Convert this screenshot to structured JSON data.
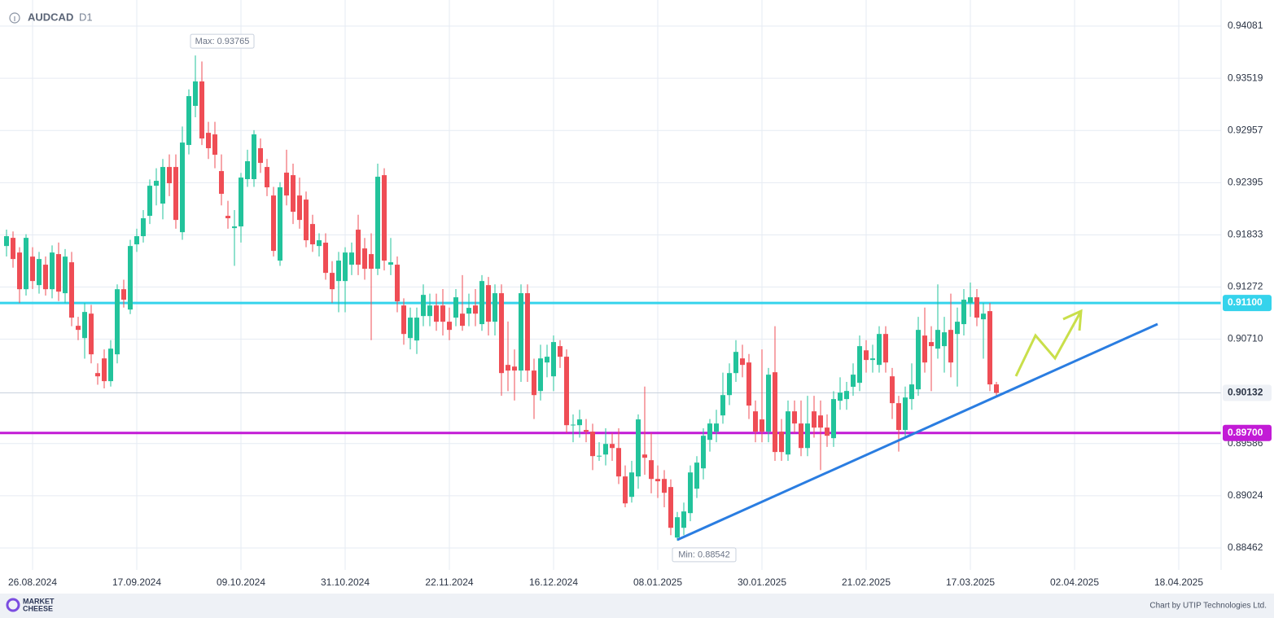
{
  "chart_data": {
    "type": "candlestick",
    "title": "AUDCAD",
    "subtitle": "D1",
    "up_color": "#22c39b",
    "down_color": "#ef4d55",
    "grid": true,
    "ylim": [
      0.88225,
      0.94362
    ],
    "yticks": [
      0.94081,
      0.93519,
      0.92957,
      0.92395,
      0.91833,
      0.91272,
      {
        "value": 0.9071,
        "label": "0.90710"
      },
      0.89586,
      0.89024,
      0.88462
    ],
    "xticks": [
      {
        "value": 4,
        "label": "26.08.2024"
      },
      {
        "value": 20,
        "label": "17.09.2024"
      },
      {
        "value": 36,
        "label": "09.10.2024"
      },
      {
        "value": 52,
        "label": "31.10.2024"
      },
      {
        "value": 68,
        "label": "22.11.2024"
      },
      {
        "value": 84,
        "label": "16.12.2024"
      },
      {
        "value": 100,
        "label": "08.01.2025"
      },
      {
        "value": 116,
        "label": "30.01.2025"
      },
      {
        "value": 132,
        "label": "21.02.2025"
      },
      {
        "value": 148,
        "label": "17.03.2025"
      },
      {
        "value": 164,
        "label": "02.04.2025"
      },
      {
        "value": 180,
        "label": "18.04.2025"
      }
    ],
    "price_lines": [
      {
        "value": 0.911,
        "label": "0.91100",
        "color": "#35d3ec"
      },
      {
        "value": 0.897,
        "label": "0.89700",
        "color": "#c21bd6"
      },
      {
        "value": 0.90132,
        "label": "0.90132",
        "color": "#c9d1dd"
      }
    ],
    "annotations": [
      {
        "label": "Max: 0.93765",
        "index": 29,
        "value": 0.93765
      },
      {
        "label": "Min: 0.88542",
        "index": 103,
        "value": 0.88542
      }
    ],
    "ohlc": [
      [
        0.91713,
        0.9189,
        0.916,
        0.91819
      ],
      [
        0.91801,
        0.9187,
        0.9148,
        0.91573
      ],
      [
        0.91643,
        0.917,
        0.911,
        0.91248
      ],
      [
        0.91248,
        0.9184,
        0.9118,
        0.91801
      ],
      [
        0.91599,
        0.917,
        0.9125,
        0.91336
      ],
      [
        0.91292,
        0.9165,
        0.912,
        0.91573
      ],
      [
        0.91512,
        0.916,
        0.9118,
        0.91248
      ],
      [
        0.91248,
        0.9172,
        0.9115,
        0.91643
      ],
      [
        0.91626,
        0.9175,
        0.9112,
        0.91222
      ],
      [
        0.91205,
        0.9168,
        0.911,
        0.91599
      ],
      [
        0.91538,
        0.9165,
        0.9085,
        0.90942
      ],
      [
        0.90854,
        0.9095,
        0.907,
        0.9081
      ],
      [
        0.90722,
        0.911,
        0.905,
        0.91003
      ],
      [
        0.90985,
        0.9108,
        0.9045,
        0.90547
      ],
      [
        0.90345,
        0.9045,
        0.9022,
        0.9031
      ],
      [
        0.90503,
        0.906,
        0.9018,
        0.90258
      ],
      [
        0.90258,
        0.907,
        0.902,
        0.90608
      ],
      [
        0.90547,
        0.913,
        0.9045,
        0.91248
      ],
      [
        0.91248,
        0.9135,
        0.9105,
        0.91135
      ],
      [
        0.91029,
        0.9178,
        0.9098,
        0.91713
      ],
      [
        0.91731,
        0.919,
        0.9165,
        0.91819
      ],
      [
        0.91819,
        0.921,
        0.9175,
        0.92012
      ],
      [
        0.92038,
        0.9243,
        0.9195,
        0.92362
      ],
      [
        0.92362,
        0.9255,
        0.9215,
        0.92415
      ],
      [
        0.9217,
        0.9265,
        0.92,
        0.92564
      ],
      [
        0.92564,
        0.927,
        0.9225,
        0.92389
      ],
      [
        0.92564,
        0.927,
        0.919,
        0.91994
      ],
      [
        0.91862,
        0.93,
        0.9178,
        0.92827
      ],
      [
        0.92801,
        0.934,
        0.927,
        0.93327
      ],
      [
        0.93222,
        0.93765,
        0.931,
        0.93485
      ],
      [
        0.93485,
        0.937,
        0.928,
        0.92871
      ],
      [
        0.92932,
        0.9305,
        0.9265,
        0.92766
      ],
      [
        0.92915,
        0.9305,
        0.9255,
        0.92696
      ],
      [
        0.9252,
        0.927,
        0.9215,
        0.92275
      ],
      [
        0.92038,
        0.922,
        0.919,
        0.92012
      ],
      [
        0.91906,
        0.921,
        0.915,
        0.91924
      ],
      [
        0.91924,
        0.925,
        0.9175,
        0.9245
      ],
      [
        0.92433,
        0.9275,
        0.9235,
        0.92626
      ],
      [
        0.92433,
        0.9296,
        0.9235,
        0.92915
      ],
      [
        0.92766,
        0.9287,
        0.925,
        0.92608
      ],
      [
        0.92564,
        0.9265,
        0.9225,
        0.92345
      ],
      [
        0.92257,
        0.9235,
        0.916,
        0.91661
      ],
      [
        0.91556,
        0.924,
        0.915,
        0.92345
      ],
      [
        0.92503,
        0.9275,
        0.9215,
        0.92257
      ],
      [
        0.92476,
        0.926,
        0.9195,
        0.92082
      ],
      [
        0.92257,
        0.9245,
        0.919,
        0.91994
      ],
      [
        0.92213,
        0.923,
        0.917,
        0.91775
      ],
      [
        0.9195,
        0.9205,
        0.9165,
        0.91731
      ],
      [
        0.91713,
        0.9185,
        0.916,
        0.91775
      ],
      [
        0.91749,
        0.9185,
        0.9135,
        0.91424
      ],
      [
        0.91424,
        0.9155,
        0.911,
        0.91248
      ],
      [
        0.91336,
        0.9165,
        0.91,
        0.91556
      ],
      [
        0.91336,
        0.917,
        0.91,
        0.91643
      ],
      [
        0.91512,
        0.9175,
        0.914,
        0.91643
      ],
      [
        0.91889,
        0.9205,
        0.914,
        0.91512
      ],
      [
        0.91687,
        0.918,
        0.9135,
        0.91468
      ],
      [
        0.91626,
        0.9185,
        0.907,
        0.91468
      ],
      [
        0.91468,
        0.926,
        0.914,
        0.92459
      ],
      [
        0.92476,
        0.9255,
        0.9145,
        0.91556
      ],
      [
        0.91512,
        0.918,
        0.914,
        0.91538
      ],
      [
        0.91512,
        0.916,
        0.91,
        0.91117
      ],
      [
        0.91073,
        0.9115,
        0.9065,
        0.90766
      ],
      [
        0.90722,
        0.9105,
        0.906,
        0.90942
      ],
      [
        0.90696,
        0.9105,
        0.9055,
        0.90942
      ],
      [
        0.90959,
        0.913,
        0.9085,
        0.91187
      ],
      [
        0.90959,
        0.912,
        0.9085,
        0.91073
      ],
      [
        0.91073,
        0.912,
        0.908,
        0.90898
      ],
      [
        0.91073,
        0.9125,
        0.9075,
        0.90898
      ],
      [
        0.90898,
        0.9105,
        0.907,
        0.9081
      ],
      [
        0.90942,
        0.9125,
        0.9085,
        0.91161
      ],
      [
        0.90985,
        0.914,
        0.908,
        0.90854
      ],
      [
        0.90985,
        0.912,
        0.9085,
        0.91047
      ],
      [
        0.91073,
        0.9125,
        0.9085,
        0.90985
      ],
      [
        0.90872,
        0.914,
        0.908,
        0.91336
      ],
      [
        0.91292,
        0.9138,
        0.9075,
        0.90898
      ],
      [
        0.90898,
        0.913,
        0.9075,
        0.91205
      ],
      [
        0.91205,
        0.913,
        0.901,
        0.90345
      ],
      [
        0.90433,
        0.909,
        0.9015,
        0.90372
      ],
      [
        0.90415,
        0.906,
        0.9005,
        0.90372
      ],
      [
        0.90372,
        0.913,
        0.9025,
        0.91205
      ],
      [
        0.91205,
        0.913,
        0.9025,
        0.90372
      ],
      [
        0.90372,
        0.905,
        0.8985,
        0.90108
      ],
      [
        0.90152,
        0.9065,
        0.9005,
        0.90503
      ],
      [
        0.90459,
        0.9065,
        0.903,
        0.90521
      ],
      [
        0.9031,
        0.9075,
        0.9015,
        0.90679
      ],
      [
        0.90635,
        0.907,
        0.904,
        0.90521
      ],
      [
        0.90521,
        0.906,
        0.897,
        0.89784
      ],
      [
        0.89784,
        0.899,
        0.896,
        0.8979
      ],
      [
        0.89784,
        0.8995,
        0.8965,
        0.89846
      ],
      [
        0.89732,
        0.8985,
        0.896,
        0.89714
      ],
      [
        0.89714,
        0.898,
        0.893,
        0.89451
      ],
      [
        0.89451,
        0.896,
        0.894,
        0.89455
      ],
      [
        0.89468,
        0.8975,
        0.8935,
        0.89582
      ],
      [
        0.89582,
        0.897,
        0.894,
        0.89538
      ],
      [
        0.89538,
        0.8975,
        0.8915,
        0.89232
      ],
      [
        0.89232,
        0.8935,
        0.889,
        0.88942
      ],
      [
        0.89012,
        0.894,
        0.8895,
        0.89275
      ],
      [
        0.89232,
        0.899,
        0.891,
        0.89846
      ],
      [
        0.89468,
        0.902,
        0.8925,
        0.89433
      ],
      [
        0.89407,
        0.897,
        0.8905,
        0.89205
      ],
      [
        0.89205,
        0.8935,
        0.89,
        0.8918
      ],
      [
        0.89205,
        0.893,
        0.889,
        0.89056
      ],
      [
        0.89118,
        0.892,
        0.886,
        0.88679
      ],
      [
        0.88574,
        0.8885,
        0.88542,
        0.88793
      ],
      [
        0.88679,
        0.8895,
        0.886,
        0.88855
      ],
      [
        0.88837,
        0.8935,
        0.8875,
        0.89275
      ],
      [
        0.891,
        0.8945,
        0.89,
        0.89381
      ],
      [
        0.89319,
        0.8975,
        0.892,
        0.8967
      ],
      [
        0.89626,
        0.8985,
        0.895,
        0.89802
      ],
      [
        0.89714,
        0.8995,
        0.896,
        0.89802
      ],
      [
        0.89889,
        0.9035,
        0.898,
        0.90108
      ],
      [
        0.90108,
        0.9045,
        0.9,
        0.90345
      ],
      [
        0.90345,
        0.907,
        0.9025,
        0.90573
      ],
      [
        0.90503,
        0.9065,
        0.903,
        0.90433
      ],
      [
        0.90459,
        0.9055,
        0.8985,
        0.89995
      ],
      [
        0.89933,
        0.9005,
        0.896,
        0.89714
      ],
      [
        0.89846,
        0.906,
        0.896,
        0.89714
      ],
      [
        0.89714,
        0.904,
        0.896,
        0.90328
      ],
      [
        0.90354,
        0.9085,
        0.894,
        0.89495
      ],
      [
        0.89714,
        0.8985,
        0.894,
        0.89495
      ],
      [
        0.89468,
        0.9005,
        0.894,
        0.89933
      ],
      [
        0.89933,
        0.9005,
        0.897,
        0.89802
      ],
      [
        0.89802,
        0.9005,
        0.8945,
        0.89538
      ],
      [
        0.89538,
        0.901,
        0.8945,
        0.89802
      ],
      [
        0.89933,
        0.901,
        0.8965,
        0.89758
      ],
      [
        0.89889,
        0.9005,
        0.893,
        0.89758
      ],
      [
        0.89758,
        0.899,
        0.8955,
        0.8967
      ],
      [
        0.89644,
        0.9015,
        0.8955,
        0.90065
      ],
      [
        0.90047,
        0.903,
        0.8995,
        0.90135
      ],
      [
        0.90065,
        0.9025,
        0.8995,
        0.90152
      ],
      [
        0.90197,
        0.9045,
        0.901,
        0.90328
      ],
      [
        0.9024,
        0.9075,
        0.9015,
        0.90635
      ],
      [
        0.9059,
        0.907,
        0.9035,
        0.90486
      ],
      [
        0.90486,
        0.9065,
        0.9035,
        0.90503
      ],
      [
        0.90433,
        0.9085,
        0.9035,
        0.90766
      ],
      [
        0.90766,
        0.9085,
        0.9035,
        0.90459
      ],
      [
        0.9031,
        0.904,
        0.8985,
        0.90021
      ],
      [
        0.90021,
        0.901,
        0.895,
        0.89732
      ],
      [
        0.89732,
        0.902,
        0.8965,
        0.90082
      ],
      [
        0.90065,
        0.9045,
        0.8995,
        0.90223
      ],
      [
        0.9017,
        0.9095,
        0.901,
        0.9081
      ],
      [
        0.90749,
        0.9105,
        0.9035,
        0.90459
      ],
      [
        0.90679,
        0.9085,
        0.9015,
        0.90635
      ],
      [
        0.90608,
        0.913,
        0.905,
        0.9081
      ],
      [
        0.90635,
        0.9095,
        0.9035,
        0.90784
      ],
      [
        0.9081,
        0.912,
        0.903,
        0.90459
      ],
      [
        0.90766,
        0.9105,
        0.902,
        0.90898
      ],
      [
        0.90872,
        0.9125,
        0.9075,
        0.91135
      ],
      [
        0.911,
        0.9132,
        0.9095,
        0.91161
      ],
      [
        0.91161,
        0.9125,
        0.9085,
        0.90942
      ],
      [
        0.90924,
        0.911,
        0.905,
        0.90985
      ],
      [
        0.91012,
        0.911,
        0.9015,
        0.90223
      ],
      [
        0.90223,
        0.9025,
        0.9008,
        0.90132
      ]
    ]
  },
  "footer": {
    "logo": [
      "MARKET",
      "CHEESE"
    ],
    "credit": "Chart by UTIP Technologies Ltd."
  }
}
